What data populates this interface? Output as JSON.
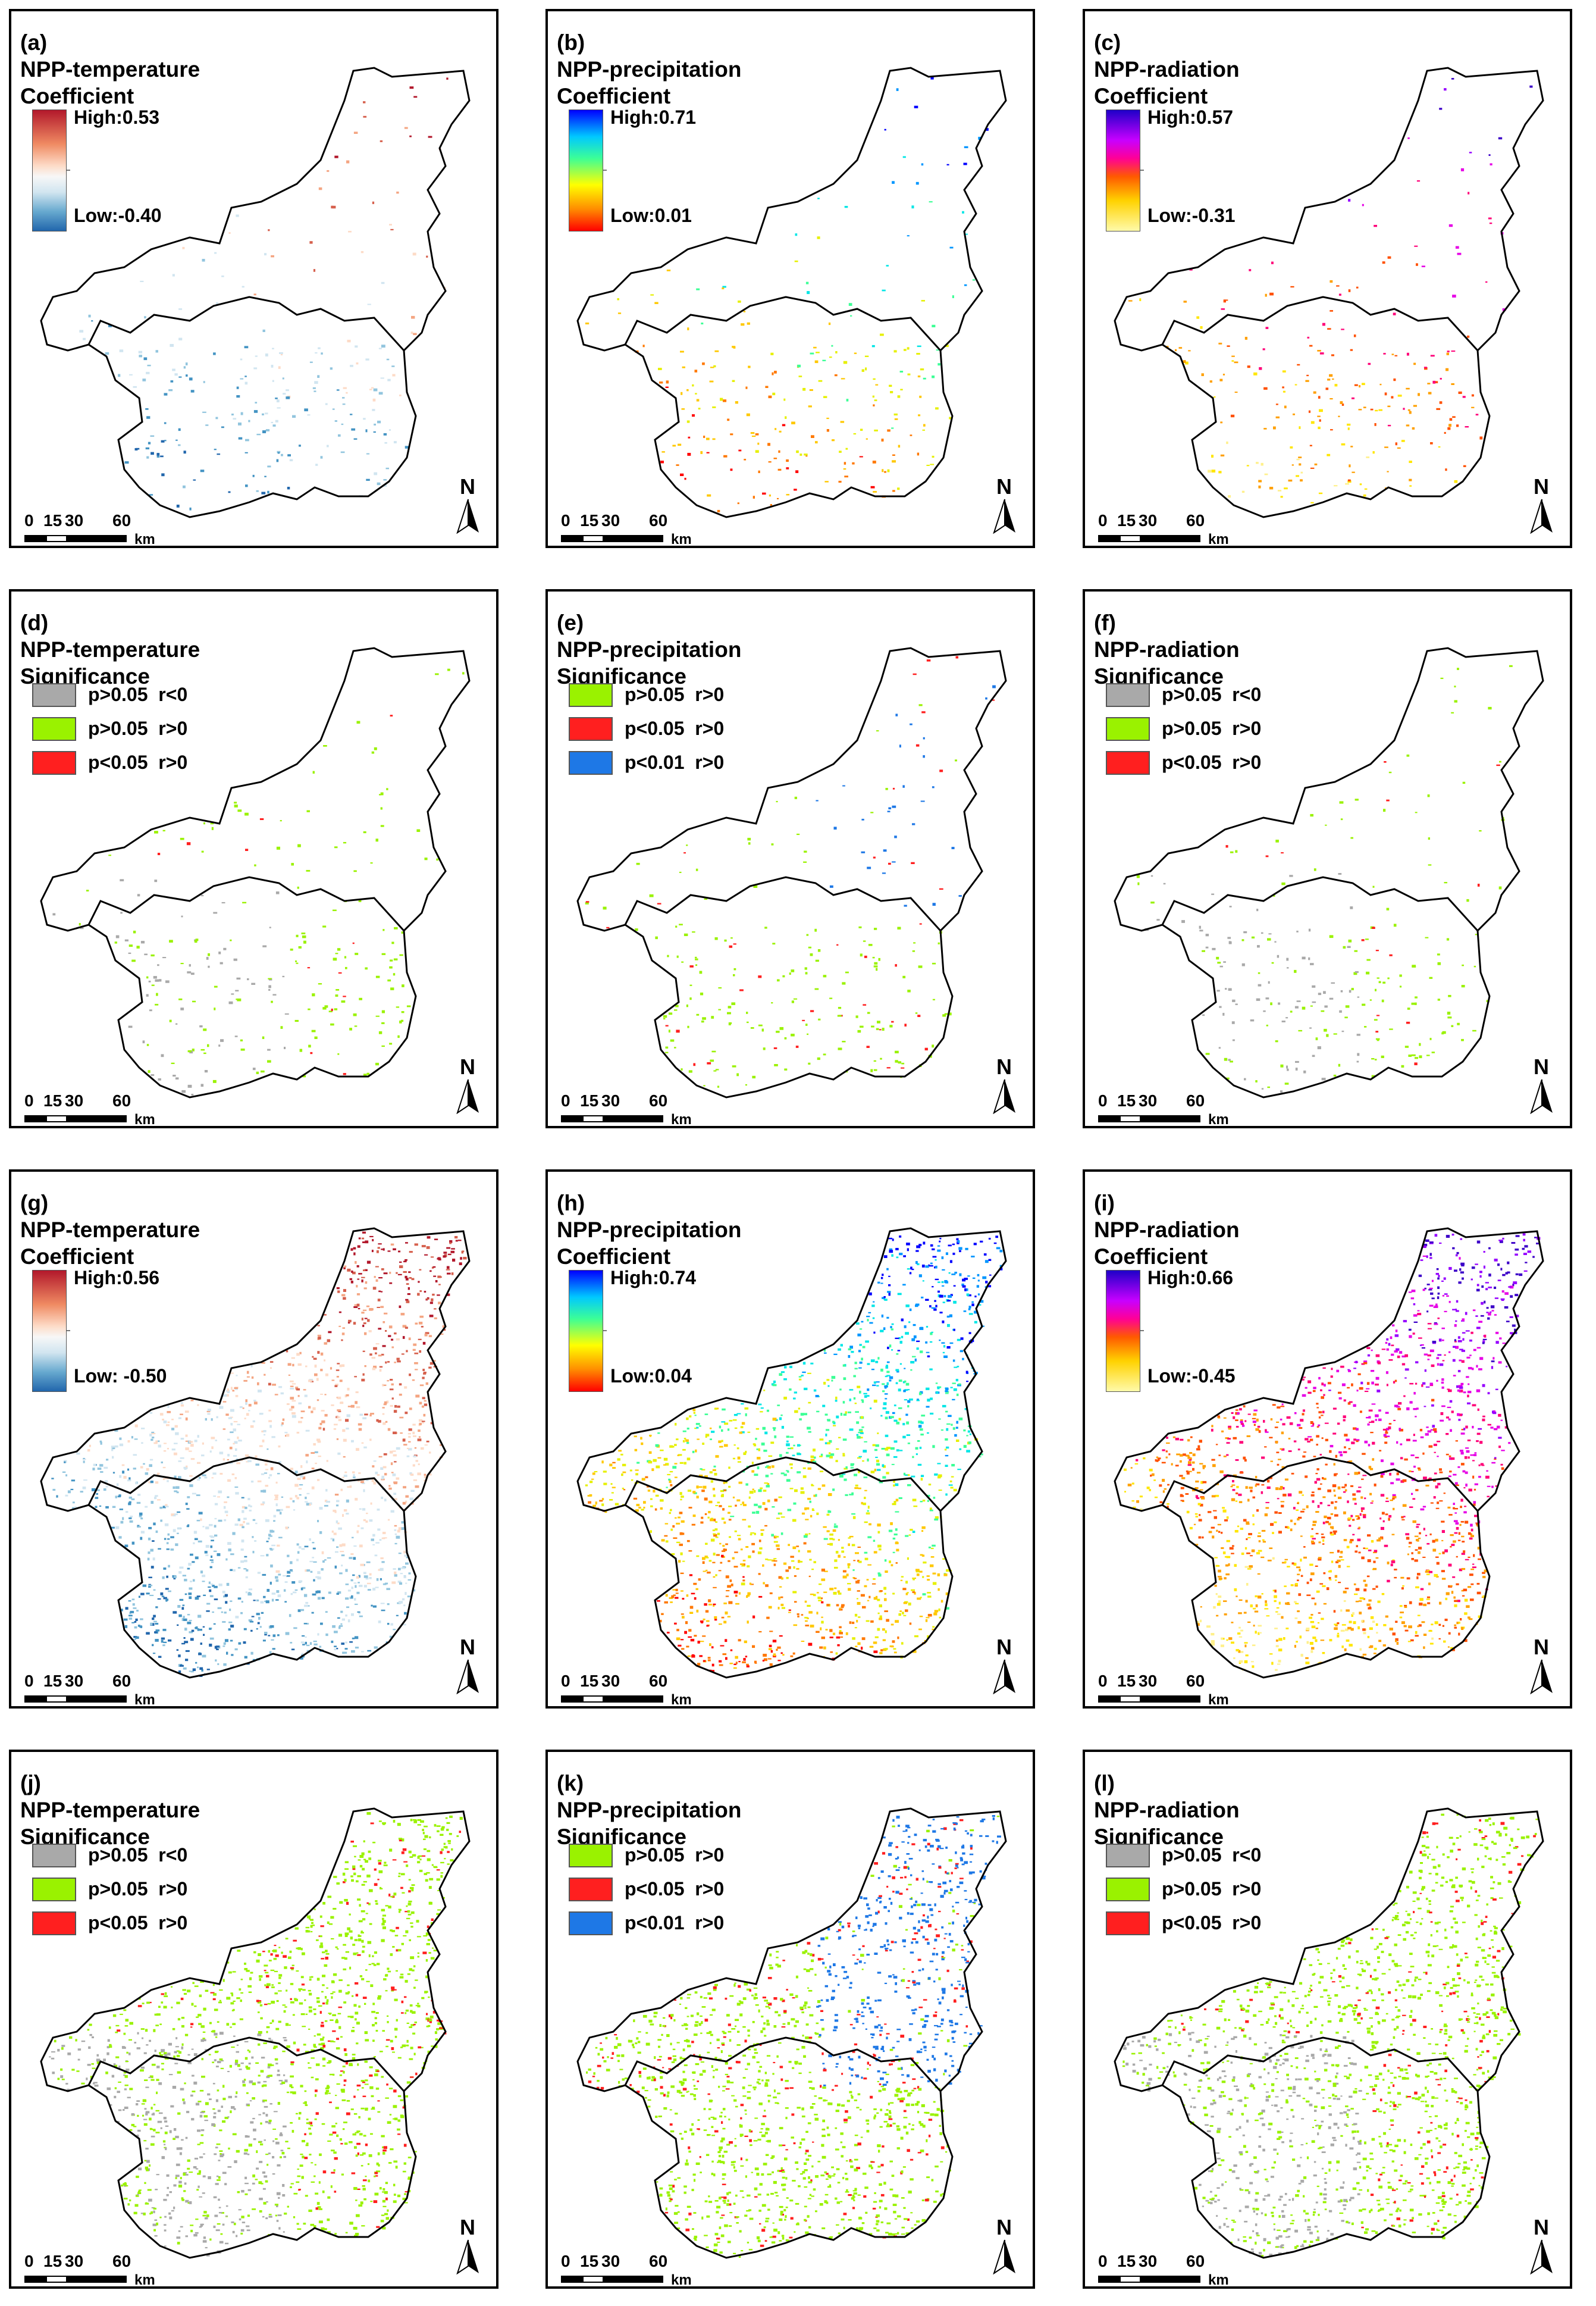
{
  "colors": {
    "gray": "#a9a9a9",
    "green": "#9af200",
    "red": "#ff1f1f",
    "blue": "#1e78e6"
  },
  "panels": [
    {
      "id": "a",
      "label": "(a)",
      "line1": "NPP-temperature",
      "line2": "Coefficient",
      "legend": "ramp",
      "ramp": "temp",
      "high": "High:0.53",
      "low": "Low:-0.40",
      "density": "low",
      "palette": "temp"
    },
    {
      "id": "b",
      "label": "(b)",
      "line1": "NPP-precipitation",
      "line2": "Coefficient",
      "legend": "ramp",
      "ramp": "prec",
      "high": "High:0.71",
      "low": "Low:0.01",
      "density": "low",
      "palette": "prec"
    },
    {
      "id": "c",
      "label": "(c)",
      "line1": "NPP-radiation",
      "line2": "Coefficient",
      "legend": "ramp",
      "ramp": "rad",
      "high": "High:0.57",
      "low": "Low:-0.31",
      "density": "low",
      "palette": "rad"
    },
    {
      "id": "d",
      "label": "(d)",
      "line1": "NPP-temperature",
      "line2": "Significance",
      "legend": "sig",
      "items": [
        {
          "color": "gray",
          "text": "p>0.05  r<0"
        },
        {
          "color": "green",
          "text": "p>0.05  r>0"
        },
        {
          "color": "red",
          "text": "p<0.05  r>0"
        }
      ],
      "density": "low",
      "palette": "sig3a"
    },
    {
      "id": "e",
      "label": "(e)",
      "line1": "NPP-precipitation",
      "line2": "Significance",
      "legend": "sig",
      "items": [
        {
          "color": "green",
          "text": "p>0.05  r>0"
        },
        {
          "color": "red",
          "text": "p<0.05  r>0"
        },
        {
          "color": "blue",
          "text": "p<0.01  r>0"
        }
      ],
      "density": "low",
      "palette": "sig3b"
    },
    {
      "id": "f",
      "label": "(f)",
      "line1": "NPP-radiation",
      "line2": "Significance",
      "legend": "sig",
      "items": [
        {
          "color": "gray",
          "text": "p>0.05  r<0"
        },
        {
          "color": "green",
          "text": "p>0.05  r>0"
        },
        {
          "color": "red",
          "text": "p<0.05  r>0"
        }
      ],
      "density": "low",
      "palette": "sig3a"
    },
    {
      "id": "g",
      "label": "(g)",
      "line1": "NPP-temperature",
      "line2": "Coefficient",
      "legend": "ramp",
      "ramp": "temp",
      "high": "High:0.56",
      "low": "Low: -0.50",
      "density": "high",
      "palette": "temp"
    },
    {
      "id": "h",
      "label": "(h)",
      "line1": "NPP-precipitation",
      "line2": "Coefficient",
      "legend": "ramp",
      "ramp": "prec",
      "high": "High:0.74",
      "low": "Low:0.04",
      "density": "high",
      "palette": "prec"
    },
    {
      "id": "i",
      "label": "(i)",
      "line1": "NPP-radiation",
      "line2": "Coefficient",
      "legend": "ramp",
      "ramp": "rad",
      "high": "High:0.66",
      "low": "Low:-0.45",
      "density": "high",
      "palette": "rad"
    },
    {
      "id": "j",
      "label": "(j)",
      "line1": "NPP-temperature",
      "line2": "Significance",
      "legend": "sig",
      "items": [
        {
          "color": "gray",
          "text": "p>0.05  r<0"
        },
        {
          "color": "green",
          "text": "p>0.05  r>0"
        },
        {
          "color": "red",
          "text": "p<0.05  r>0"
        }
      ],
      "density": "high",
      "palette": "sig3a"
    },
    {
      "id": "k",
      "label": "(k)",
      "line1": "NPP-precipitation",
      "line2": "Significance",
      "legend": "sig",
      "items": [
        {
          "color": "green",
          "text": "p>0.05  r>0"
        },
        {
          "color": "red",
          "text": "p<0.05  r>0"
        },
        {
          "color": "blue",
          "text": "p<0.01  r>0"
        }
      ],
      "density": "high",
      "palette": "sig3b"
    },
    {
      "id": "l",
      "label": "(l)",
      "line1": "NPP-radiation",
      "line2": "Significance",
      "legend": "sig",
      "items": [
        {
          "color": "gray",
          "text": "p>0.05  r<0"
        },
        {
          "color": "green",
          "text": "p>0.05  r>0"
        },
        {
          "color": "red",
          "text": "p<0.05  r>0"
        }
      ],
      "density": "high",
      "palette": "sig3a"
    }
  ],
  "scale": {
    "ticks": [
      "0",
      "15",
      "30",
      "60"
    ],
    "unit": "km"
  },
  "north": "N"
}
